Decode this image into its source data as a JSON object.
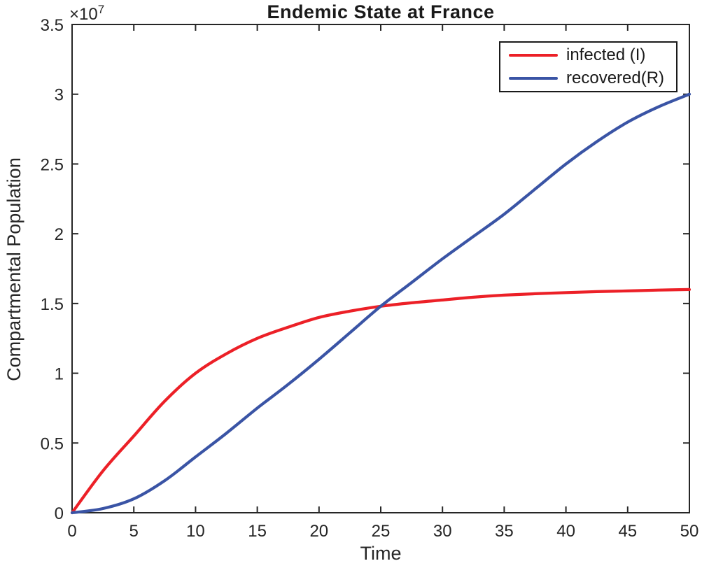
{
  "title": "Endemic State at France",
  "axes": {
    "xlabel": "Time",
    "ylabel": "Compartmental Population",
    "exponent_base": "×10",
    "exponent_power": "7"
  },
  "legend": {
    "entries": [
      {
        "label": "infected (I)",
        "color": "#ec2027"
      },
      {
        "label": "recovered(R)",
        "color": "#3a54a5"
      }
    ]
  },
  "colors": {
    "axis": "#262626",
    "background": "#ffffff",
    "infected": "#ec2027",
    "recovered": "#3a54a5"
  },
  "chart_data": {
    "type": "line",
    "title": "Endemic State at France",
    "xlabel": "Time",
    "ylabel": "Compartmental Population",
    "xlim": [
      0,
      50
    ],
    "ylim": [
      0,
      35000000
    ],
    "xticks": [
      0,
      5,
      10,
      15,
      20,
      25,
      30,
      35,
      40,
      45,
      50
    ],
    "yticks": [
      0,
      5000000,
      10000000,
      15000000,
      20000000,
      25000000,
      30000000,
      35000000
    ],
    "ytick_labels": [
      "0",
      "0.5",
      "1",
      "1.5",
      "2",
      "2.5",
      "3",
      "3.5"
    ],
    "y_axis_multiplier": "1e7",
    "grid": false,
    "legend_position": "top-right",
    "x": [
      0,
      2.5,
      5,
      7.5,
      10,
      12.5,
      15,
      17.5,
      20,
      22.5,
      25,
      27.5,
      30,
      32.5,
      35,
      37.5,
      40,
      42.5,
      45,
      47.5,
      50
    ],
    "series": [
      {
        "name": "infected (I)",
        "color": "#ec2027",
        "values": [
          0,
          3000000,
          5500000,
          8000000,
          10000000,
          11400000,
          12500000,
          13300000,
          14000000,
          14450000,
          14800000,
          15050000,
          15250000,
          15450000,
          15600000,
          15700000,
          15780000,
          15850000,
          15900000,
          15960000,
          16000000
        ]
      },
      {
        "name": "recovered(R)",
        "color": "#3a54a5",
        "values": [
          0,
          300000,
          1000000,
          2300000,
          4000000,
          5700000,
          7500000,
          9200000,
          11000000,
          12900000,
          14800000,
          16500000,
          18200000,
          19800000,
          21400000,
          23200000,
          25000000,
          26600000,
          28000000,
          29100000,
          30000000
        ]
      }
    ]
  }
}
